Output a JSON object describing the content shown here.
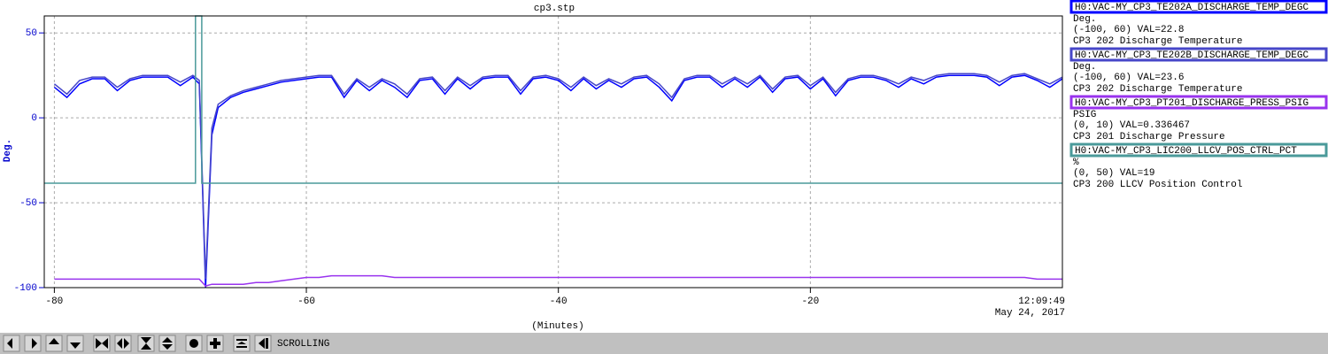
{
  "chart_data": {
    "type": "line",
    "title": "cp3.stp",
    "ylabel": "Deg.",
    "xlabel": "(Minutes)",
    "time_label": "12:09:49",
    "date_label": "May 24, 2017",
    "xlim": [
      -80.8,
      0
    ],
    "ylim": [
      -100,
      60
    ],
    "xticks": [
      -80,
      -60,
      -40,
      -20
    ],
    "yticks": [
      -100,
      -50,
      0,
      50
    ],
    "grid": true,
    "x": [
      -80,
      -79,
      -78,
      -77,
      -76,
      -75,
      -74,
      -73,
      -72,
      -71,
      -70,
      -69,
      -68.5,
      -68,
      -67.5,
      -67,
      -66,
      -65,
      -64,
      -63,
      -62,
      -61,
      -60,
      -59,
      -58,
      -57,
      -56,
      -55,
      -54,
      -53,
      -52,
      -51,
      -50,
      -49,
      -48,
      -47,
      -46,
      -45,
      -44,
      -43,
      -42,
      -41,
      -40,
      -39,
      -38,
      -37,
      -36,
      -35,
      -34,
      -33,
      -32,
      -31,
      -30,
      -29,
      -28,
      -27,
      -26,
      -25,
      -24,
      -23,
      -22,
      -21,
      -20,
      -19,
      -18,
      -17,
      -16,
      -15,
      -14,
      -13,
      -12,
      -11,
      -10,
      -9,
      -8,
      -7,
      -6,
      -5,
      -4,
      -3,
      -2,
      -1,
      0
    ],
    "series": [
      {
        "name": "H0:VAC-MY_CP3_TE202A_DISCHARGE_TEMP_DEGC",
        "color": "#0000ff",
        "units": "Deg.",
        "range_label": "(-100, 60) VAL=22.8",
        "description": "CP3 202 Discharge Temperature",
        "values": [
          18,
          12,
          20,
          23,
          23,
          16,
          22,
          24,
          24,
          24,
          19,
          24,
          20,
          -100,
          -10,
          6,
          12,
          15,
          17,
          19,
          21,
          22,
          23,
          24,
          24,
          12,
          22,
          16,
          22,
          18,
          12,
          22,
          23,
          14,
          23,
          17,
          23,
          24,
          24,
          14,
          23,
          24,
          22,
          16,
          23,
          17,
          22,
          18,
          23,
          24,
          18,
          10,
          22,
          24,
          24,
          18,
          23,
          18,
          24,
          15,
          23,
          24,
          17,
          23,
          13,
          22,
          24,
          24,
          22,
          18,
          23,
          20,
          24,
          25,
          25,
          25,
          24,
          19,
          24,
          25,
          22,
          18,
          23
        ]
      },
      {
        "name": "H0:VAC-MY_CP3_TE202B_DISCHARGE_TEMP_DEGC",
        "color": "#4646c8",
        "units": "Deg.",
        "range_label": "(-100, 60) VAL=23.6",
        "description": "CP3 202 Discharge Temperature",
        "values": [
          20,
          14,
          22,
          24,
          24,
          18,
          23,
          25,
          25,
          25,
          21,
          25,
          22,
          -95,
          -6,
          8,
          13,
          16,
          18,
          20,
          22,
          23,
          24,
          25,
          25,
          14,
          23,
          18,
          23,
          20,
          14,
          23,
          24,
          16,
          24,
          19,
          24,
          25,
          25,
          16,
          24,
          25,
          23,
          18,
          24,
          19,
          23,
          20,
          24,
          25,
          20,
          12,
          23,
          25,
          25,
          20,
          24,
          20,
          25,
          17,
          24,
          25,
          19,
          24,
          15,
          23,
          25,
          25,
          23,
          20,
          24,
          22,
          25,
          26,
          26,
          26,
          25,
          21,
          25,
          26,
          23,
          20,
          24
        ]
      },
      {
        "name": "H0:VAC-MY_CP3_PT201_DISCHARGE_PRESS_PSIG",
        "color": "#9933ee",
        "units": "PSIG",
        "range_label": "(0, 10) VAL=0.336467",
        "description": "CP3 201 Discharge Pressure",
        "values": [
          -95,
          -95,
          -95,
          -95,
          -95,
          -95,
          -95,
          -95,
          -95,
          -95,
          -95,
          -95,
          -95,
          -99,
          -98,
          -98,
          -98,
          -98,
          -97,
          -97,
          -96,
          -95,
          -94,
          -94,
          -93,
          -93,
          -93,
          -93,
          -93,
          -94,
          -94,
          -94,
          -94,
          -94,
          -94,
          -94,
          -94,
          -94,
          -94,
          -94,
          -94,
          -94,
          -94,
          -94,
          -94,
          -94,
          -94,
          -94,
          -94,
          -94,
          -94,
          -94,
          -94,
          -94,
          -94,
          -94,
          -94,
          -94,
          -94,
          -94,
          -94,
          -94,
          -94,
          -94,
          -94,
          -94,
          -94,
          -94,
          -94,
          -94,
          -94,
          -94,
          -94,
          -94,
          -94,
          -94,
          -94,
          -94,
          -94,
          -94,
          -95,
          -95,
          -95
        ]
      },
      {
        "name": "H0:VAC-MY_CP3_LIC200_LLCV_POS_CTRL_PCT",
        "color": "#4a9a9a",
        "units": "%",
        "range_label": "(0, 50) VAL=19",
        "description": "CP3 200 LLCV Position Control",
        "x": [
          -80.8,
          -68.8,
          -68.8,
          -68.3,
          -68.3,
          0
        ],
        "values": [
          -38.5,
          -38.5,
          60,
          60,
          -38.5,
          -38.5
        ]
      }
    ]
  },
  "toolbar": {
    "status": "SCROLLING"
  }
}
